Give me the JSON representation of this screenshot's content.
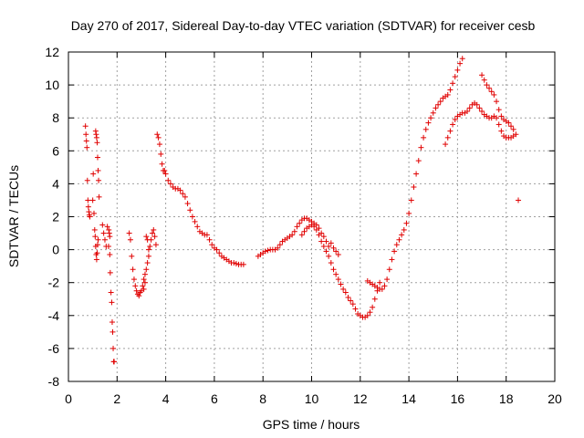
{
  "chart_data": {
    "type": "scatter",
    "title": "Day 270 of 2017, Sidereal Day-to-day VTEC variation (SDTVAR) for receiver cesb",
    "xlabel": "GPS time / hours",
    "ylabel": "SDTVAR / TECUs",
    "xlim": [
      0,
      20
    ],
    "ylim": [
      -8,
      12
    ],
    "xticks": [
      0,
      2,
      4,
      6,
      8,
      10,
      12,
      14,
      16,
      18,
      20
    ],
    "yticks": [
      -8,
      -6,
      -4,
      -2,
      0,
      2,
      4,
      6,
      8,
      10,
      12
    ],
    "grid": true,
    "marker": "+",
    "color": "#e00000",
    "series": [
      {
        "name": "SDTVAR",
        "points": [
          [
            0.7,
            7.5
          ],
          [
            0.72,
            7.0
          ],
          [
            0.74,
            6.6
          ],
          [
            0.76,
            6.2
          ],
          [
            0.78,
            4.2
          ],
          [
            0.8,
            3.0
          ],
          [
            0.82,
            2.6
          ],
          [
            0.84,
            2.3
          ],
          [
            0.86,
            2.1
          ],
          [
            0.88,
            2.0
          ],
          [
            1.0,
            3.0
          ],
          [
            1.02,
            4.6
          ],
          [
            1.05,
            2.2
          ],
          [
            1.08,
            1.2
          ],
          [
            1.1,
            0.8
          ],
          [
            1.12,
            0.2
          ],
          [
            1.14,
            -0.3
          ],
          [
            1.16,
            -0.6
          ],
          [
            1.18,
            -0.2
          ],
          [
            1.2,
            0.3
          ],
          [
            1.22,
            0.6
          ],
          [
            1.12,
            7.2
          ],
          [
            1.14,
            7.0
          ],
          [
            1.16,
            6.8
          ],
          [
            1.18,
            6.5
          ],
          [
            1.2,
            5.6
          ],
          [
            1.22,
            4.8
          ],
          [
            1.24,
            4.2
          ],
          [
            1.26,
            3.2
          ],
          [
            1.4,
            1.5
          ],
          [
            1.45,
            1.0
          ],
          [
            1.5,
            0.6
          ],
          [
            1.55,
            0.2
          ],
          [
            1.6,
            1.4
          ],
          [
            1.65,
            0.2
          ],
          [
            1.7,
            -0.3
          ],
          [
            1.72,
            -1.4
          ],
          [
            1.75,
            -2.6
          ],
          [
            1.78,
            -3.2
          ],
          [
            1.8,
            -4.4
          ],
          [
            1.82,
            -5.0
          ],
          [
            1.84,
            -6.0
          ],
          [
            1.86,
            -6.8
          ],
          [
            1.88,
            -6.8
          ],
          [
            1.66,
            1.2
          ],
          [
            1.68,
            1.0
          ],
          [
            1.7,
            0.8
          ],
          [
            2.5,
            1.0
          ],
          [
            2.55,
            0.6
          ],
          [
            2.6,
            -0.4
          ],
          [
            2.65,
            -1.2
          ],
          [
            2.7,
            -1.8
          ],
          [
            2.75,
            -2.2
          ],
          [
            2.8,
            -2.5
          ],
          [
            2.85,
            -2.7
          ],
          [
            2.9,
            -2.8
          ],
          [
            2.95,
            -2.6
          ],
          [
            3.0,
            -2.5
          ],
          [
            3.05,
            -2.2
          ],
          [
            3.1,
            -1.8
          ],
          [
            3.15,
            -1.5
          ],
          [
            3.2,
            -1.2
          ],
          [
            3.25,
            -0.8
          ],
          [
            3.3,
            -0.4
          ],
          [
            3.35,
            0.2
          ],
          [
            3.4,
            0.6
          ],
          [
            3.45,
            1.0
          ],
          [
            3.5,
            1.2
          ],
          [
            3.55,
            0.8
          ],
          [
            3.6,
            0.3
          ],
          [
            3.2,
            0.8
          ],
          [
            3.25,
            0.6
          ],
          [
            3.3,
            0.0
          ],
          [
            3.1,
            -2.4
          ],
          [
            3.15,
            -2.0
          ],
          [
            3.65,
            7.0
          ],
          [
            3.7,
            6.8
          ],
          [
            3.75,
            6.4
          ],
          [
            3.8,
            5.8
          ],
          [
            3.85,
            5.2
          ],
          [
            3.9,
            4.8
          ],
          [
            3.95,
            4.8
          ],
          [
            4.0,
            4.6
          ],
          [
            4.1,
            4.2
          ],
          [
            4.2,
            4.0
          ],
          [
            4.3,
            3.8
          ],
          [
            4.4,
            3.7
          ],
          [
            4.5,
            3.7
          ],
          [
            4.6,
            3.6
          ],
          [
            4.7,
            3.4
          ],
          [
            4.8,
            3.2
          ],
          [
            4.9,
            2.8
          ],
          [
            5.0,
            2.4
          ],
          [
            5.1,
            2.0
          ],
          [
            5.2,
            1.7
          ],
          [
            5.3,
            1.4
          ],
          [
            5.4,
            1.1
          ],
          [
            5.5,
            1.0
          ],
          [
            5.6,
            0.9
          ],
          [
            5.7,
            0.9
          ],
          [
            5.8,
            0.6
          ],
          [
            5.9,
            0.3
          ],
          [
            6.0,
            0.1
          ],
          [
            6.1,
            0.0
          ],
          [
            6.2,
            -0.2
          ],
          [
            6.3,
            -0.4
          ],
          [
            6.4,
            -0.5
          ],
          [
            6.5,
            -0.6
          ],
          [
            6.6,
            -0.7
          ],
          [
            6.7,
            -0.8
          ],
          [
            6.8,
            -0.8
          ],
          [
            6.9,
            -0.85
          ],
          [
            7.0,
            -0.9
          ],
          [
            7.1,
            -0.9
          ],
          [
            7.2,
            -0.9
          ],
          [
            7.8,
            -0.4
          ],
          [
            7.9,
            -0.3
          ],
          [
            8.0,
            -0.2
          ],
          [
            8.1,
            -0.1
          ],
          [
            8.2,
            -0.05
          ],
          [
            8.3,
            0.0
          ],
          [
            8.4,
            0.0
          ],
          [
            8.5,
            0.0
          ],
          [
            8.6,
            0.1
          ],
          [
            8.7,
            0.3
          ],
          [
            8.8,
            0.5
          ],
          [
            8.9,
            0.6
          ],
          [
            9.0,
            0.7
          ],
          [
            9.1,
            0.8
          ],
          [
            9.2,
            0.9
          ],
          [
            9.3,
            1.1
          ],
          [
            9.4,
            1.4
          ],
          [
            9.5,
            1.6
          ],
          [
            9.6,
            1.8
          ],
          [
            9.7,
            1.9
          ],
          [
            9.8,
            1.9
          ],
          [
            9.9,
            1.8
          ],
          [
            10.0,
            1.7
          ],
          [
            10.1,
            1.6
          ],
          [
            10.2,
            1.5
          ],
          [
            10.3,
            1.3
          ],
          [
            10.4,
            1.0
          ],
          [
            10.5,
            0.8
          ],
          [
            10.6,
            0.5
          ],
          [
            10.7,
            0.2
          ],
          [
            9.6,
            0.9
          ],
          [
            9.7,
            1.1
          ],
          [
            9.8,
            1.3
          ],
          [
            9.9,
            1.4
          ],
          [
            10.0,
            1.5
          ],
          [
            10.1,
            1.4
          ],
          [
            10.2,
            1.2
          ],
          [
            10.3,
            0.9
          ],
          [
            10.4,
            0.5
          ],
          [
            10.5,
            0.2
          ],
          [
            10.6,
            -0.1
          ],
          [
            10.7,
            -0.4
          ],
          [
            10.8,
            -0.8
          ],
          [
            10.9,
            -1.2
          ],
          [
            11.0,
            -1.5
          ],
          [
            11.1,
            -1.8
          ],
          [
            11.2,
            -2.1
          ],
          [
            11.3,
            -2.4
          ],
          [
            11.4,
            -2.6
          ],
          [
            11.5,
            -2.9
          ],
          [
            11.6,
            -3.1
          ],
          [
            11.7,
            -3.3
          ],
          [
            11.8,
            -3.6
          ],
          [
            11.9,
            -3.9
          ],
          [
            12.0,
            -4.0
          ],
          [
            12.1,
            -4.1
          ],
          [
            12.2,
            -4.1
          ],
          [
            12.3,
            -4.0
          ],
          [
            12.4,
            -3.8
          ],
          [
            12.5,
            -3.5
          ],
          [
            12.6,
            -3.0
          ],
          [
            12.7,
            -2.5
          ],
          [
            12.8,
            -2.0
          ],
          [
            10.8,
            0.4
          ],
          [
            10.9,
            0.1
          ],
          [
            11.0,
            -0.1
          ],
          [
            11.1,
            -0.3
          ],
          [
            12.3,
            -1.9
          ],
          [
            12.4,
            -2.0
          ],
          [
            12.5,
            -2.1
          ],
          [
            12.6,
            -2.2
          ],
          [
            12.7,
            -2.3
          ],
          [
            12.8,
            -2.4
          ],
          [
            12.9,
            -2.4
          ],
          [
            13.0,
            -2.2
          ],
          [
            13.1,
            -1.8
          ],
          [
            13.2,
            -1.2
          ],
          [
            13.3,
            -0.6
          ],
          [
            13.4,
            -0.1
          ],
          [
            13.5,
            0.3
          ],
          [
            13.6,
            0.6
          ],
          [
            13.7,
            0.9
          ],
          [
            13.8,
            1.2
          ],
          [
            13.9,
            1.6
          ],
          [
            14.0,
            2.2
          ],
          [
            14.1,
            3.0
          ],
          [
            14.2,
            3.8
          ],
          [
            14.3,
            4.6
          ],
          [
            14.4,
            5.4
          ],
          [
            14.5,
            6.2
          ],
          [
            14.6,
            6.8
          ],
          [
            14.7,
            7.3
          ],
          [
            14.8,
            7.7
          ],
          [
            14.9,
            8.0
          ],
          [
            15.0,
            8.3
          ],
          [
            15.1,
            8.6
          ],
          [
            15.2,
            8.8
          ],
          [
            15.3,
            9.0
          ],
          [
            15.4,
            9.2
          ],
          [
            15.5,
            9.3
          ],
          [
            15.6,
            9.4
          ],
          [
            15.7,
            9.7
          ],
          [
            15.8,
            10.1
          ],
          [
            15.9,
            10.5
          ],
          [
            16.0,
            10.9
          ],
          [
            16.1,
            11.3
          ],
          [
            16.2,
            11.6
          ],
          [
            15.5,
            6.4
          ],
          [
            15.6,
            6.8
          ],
          [
            15.7,
            7.2
          ],
          [
            15.8,
            7.6
          ],
          [
            15.9,
            7.9
          ],
          [
            16.0,
            8.1
          ],
          [
            16.1,
            8.2
          ],
          [
            16.2,
            8.3
          ],
          [
            16.3,
            8.3
          ],
          [
            16.4,
            8.4
          ],
          [
            16.5,
            8.6
          ],
          [
            16.6,
            8.8
          ],
          [
            16.7,
            8.9
          ],
          [
            16.8,
            8.8
          ],
          [
            16.9,
            8.6
          ],
          [
            17.0,
            8.4
          ],
          [
            17.1,
            8.2
          ],
          [
            17.2,
            8.1
          ],
          [
            17.3,
            8.0
          ],
          [
            17.4,
            8.0
          ],
          [
            17.5,
            8.1
          ],
          [
            17.6,
            8.0
          ],
          [
            17.7,
            7.6
          ],
          [
            17.8,
            7.2
          ],
          [
            17.9,
            6.9
          ],
          [
            18.0,
            6.8
          ],
          [
            18.1,
            6.8
          ],
          [
            18.2,
            6.8
          ],
          [
            18.3,
            6.9
          ],
          [
            17.0,
            10.6
          ],
          [
            17.1,
            10.3
          ],
          [
            17.2,
            10.0
          ],
          [
            17.3,
            9.8
          ],
          [
            17.4,
            9.6
          ],
          [
            17.5,
            9.4
          ],
          [
            17.6,
            9.0
          ],
          [
            17.7,
            8.5
          ],
          [
            17.8,
            8.1
          ],
          [
            17.9,
            7.9
          ],
          [
            18.0,
            7.8
          ],
          [
            18.1,
            7.7
          ],
          [
            18.2,
            7.5
          ],
          [
            18.3,
            7.3
          ],
          [
            18.4,
            7.0
          ],
          [
            18.5,
            3.0
          ]
        ]
      }
    ]
  }
}
